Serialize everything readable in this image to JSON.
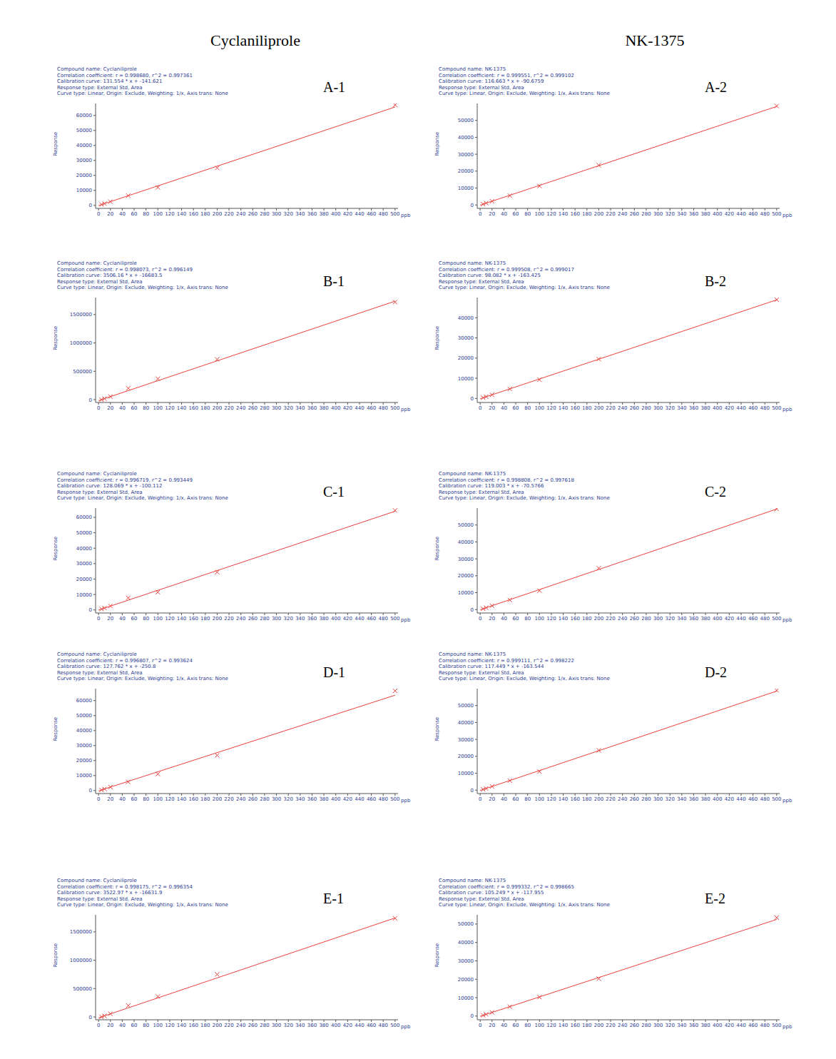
{
  "columns": [
    "Cyclaniliprole",
    "NK-1375"
  ],
  "chart_data": [
    {
      "type": "scatter",
      "title": "A-1",
      "header": [
        "Compound name: Cyclaniliprole",
        "Correlation coefficient: r = 0.998680, r^2 = 0.997361",
        "Calibration curve: 131.554 * x + -141.621",
        "Response type: External Std, Area",
        "Curve type: Linear, Origin: Exclude, Weighting: 1/x, Axis trans: None"
      ],
      "x_label": "ppb",
      "y_label": "Response",
      "xlim": [
        -5,
        505
      ],
      "xticks": [
        0,
        20,
        40,
        60,
        80,
        100,
        120,
        140,
        160,
        180,
        200,
        220,
        240,
        260,
        280,
        300,
        320,
        340,
        360,
        380,
        400,
        420,
        440,
        460,
        480,
        500
      ],
      "ylim": [
        -2000,
        68000
      ],
      "yticks": [
        0,
        10000,
        20000,
        30000,
        40000,
        50000,
        60000
      ],
      "series": [
        {
          "type": "scatter",
          "marker": "x",
          "color": "#e8413c",
          "x": [
            5,
            10,
            20,
            50,
            100,
            200,
            500
          ],
          "values": [
            600,
            1200,
            2500,
            6500,
            12000,
            25000,
            67000
          ]
        },
        {
          "type": "line",
          "color": "#e8413c",
          "x": [
            0,
            500
          ],
          "values": [
            -141.621,
            65636
          ]
        }
      ]
    },
    {
      "type": "scatter",
      "title": "A-2",
      "header": [
        "Compound name: NK-1375",
        "Correlation coefficient: r = 0.999551, r^2 = 0.999102",
        "Calibration curve: 116.663 * x + -90.6759",
        "Response type: External Std, Area",
        "Curve type: Linear, Origin: Exclude, Weighting: 1/x, Axis trans: None"
      ],
      "x_label": "ppb",
      "y_label": "Response",
      "xlim": [
        -5,
        505
      ],
      "xticks": [
        0,
        20,
        40,
        60,
        80,
        100,
        120,
        140,
        160,
        180,
        200,
        220,
        240,
        260,
        280,
        300,
        320,
        340,
        360,
        380,
        400,
        420,
        440,
        460,
        480,
        500
      ],
      "ylim": [
        -2000,
        60000
      ],
      "yticks": [
        0,
        10000,
        20000,
        30000,
        40000,
        50000
      ],
      "series": [
        {
          "type": "scatter",
          "marker": "x",
          "color": "#e8413c",
          "x": [
            5,
            10,
            20,
            50,
            100,
            200,
            500
          ],
          "values": [
            500,
            1100,
            2200,
            5500,
            11200,
            23500,
            58500
          ]
        },
        {
          "type": "line",
          "color": "#e8413c",
          "x": [
            0,
            500
          ],
          "values": [
            -90.6759,
            58241
          ]
        }
      ]
    },
    {
      "type": "scatter",
      "title": "B-1",
      "header": [
        "Compound name: Cyclaniliprole",
        "Correlation coefficient: r = 0.998073, r^2 = 0.996149",
        "Calibration curve: 3506.16 * x + -16683.5",
        "Response type: External Std, Area",
        "Curve type: Linear, Origin: Exclude, Weighting: 1/x, Axis trans: None"
      ],
      "x_label": "ppb",
      "y_label": "Response",
      "xlim": [
        -5,
        505
      ],
      "xticks": [
        0,
        20,
        40,
        60,
        80,
        100,
        120,
        140,
        160,
        180,
        200,
        220,
        240,
        260,
        280,
        300,
        320,
        340,
        360,
        380,
        400,
        420,
        440,
        460,
        480,
        500
      ],
      "ylim": [
        -50000,
        1800000
      ],
      "yticks": [
        0,
        500000,
        1000000,
        1500000
      ],
      "series": [
        {
          "type": "scatter",
          "marker": "x",
          "color": "#e8413c",
          "x": [
            5,
            10,
            20,
            50,
            100,
            200,
            500
          ],
          "values": [
            1000,
            18000,
            55000,
            200000,
            370000,
            710000,
            1720000
          ]
        },
        {
          "type": "line",
          "color": "#e8413c",
          "x": [
            0,
            500
          ],
          "values": [
            -16683.5,
            1736397
          ]
        }
      ]
    },
    {
      "type": "scatter",
      "title": "B-2",
      "header": [
        "Compound name: NK-1375",
        "Correlation coefficient: r = 0.999508, r^2 = 0.999017",
        "Calibration curve: 98.082 * x + -163.425",
        "Response type: External Std, Area",
        "Curve type: Linear, Origin: Exclude, Weighting: 1/x, Axis trans: None"
      ],
      "x_label": "ppb",
      "y_label": "Response",
      "xlim": [
        -5,
        505
      ],
      "xticks": [
        0,
        20,
        40,
        60,
        80,
        100,
        120,
        140,
        160,
        180,
        200,
        220,
        240,
        260,
        280,
        300,
        320,
        340,
        360,
        380,
        400,
        420,
        440,
        460,
        480,
        500
      ],
      "ylim": [
        -2000,
        50000
      ],
      "yticks": [
        0,
        10000,
        20000,
        30000,
        40000
      ],
      "series": [
        {
          "type": "scatter",
          "marker": "x",
          "color": "#e8413c",
          "x": [
            5,
            10,
            20,
            50,
            100,
            200,
            500
          ],
          "values": [
            350,
            850,
            1800,
            4700,
            9300,
            19500,
            49000
          ]
        },
        {
          "type": "line",
          "color": "#e8413c",
          "x": [
            0,
            500
          ],
          "values": [
            -163.425,
            48878
          ]
        }
      ]
    },
    {
      "type": "scatter",
      "title": "C-1",
      "header": [
        "Compound name: Cyclaniliprole",
        "Correlation coefficient: r = 0.996719, r^2 = 0.993449",
        "Calibration curve: 128.069 * x + -100.112",
        "Response type: External Std, Area",
        "Curve type: Linear, Origin: Exclude, Weighting: 1/x, Axis trans: None"
      ],
      "x_label": "ppb",
      "y_label": "Response",
      "xlim": [
        -5,
        505
      ],
      "xticks": [
        0,
        20,
        40,
        60,
        80,
        100,
        120,
        140,
        160,
        180,
        200,
        220,
        240,
        260,
        280,
        300,
        320,
        340,
        360,
        380,
        400,
        420,
        440,
        460,
        480,
        500
      ],
      "ylim": [
        -2000,
        66000
      ],
      "yticks": [
        0,
        10000,
        20000,
        30000,
        40000,
        50000,
        60000
      ],
      "series": [
        {
          "type": "scatter",
          "marker": "x",
          "color": "#e8413c",
          "x": [
            5,
            10,
            20,
            50,
            100,
            200,
            500
          ],
          "values": [
            550,
            1200,
            2500,
            7800,
            11500,
            24500,
            64500
          ]
        },
        {
          "type": "line",
          "color": "#e8413c",
          "x": [
            0,
            500
          ],
          "values": [
            -100.112,
            63934
          ]
        }
      ]
    },
    {
      "type": "scatter",
      "title": "C-2",
      "header": [
        "Compound name: NK-1375",
        "Correlation coefficient: r = 0.998808, r^2 = 0.997618",
        "Calibration curve: 119.003 * x + -70.5766",
        "Response type: External Std, Area",
        "Curve type: Linear, Origin: Exclude, Weighting: 1/x, Axis trans: None"
      ],
      "x_label": "ppb",
      "y_label": "Response",
      "xlim": [
        -5,
        505
      ],
      "xticks": [
        0,
        20,
        40,
        60,
        80,
        100,
        120,
        140,
        160,
        180,
        200,
        220,
        240,
        260,
        280,
        300,
        320,
        340,
        360,
        380,
        400,
        420,
        440,
        460,
        480,
        500
      ],
      "ylim": [
        -2000,
        60000
      ],
      "yticks": [
        0,
        10000,
        20000,
        30000,
        40000,
        50000
      ],
      "series": [
        {
          "type": "scatter",
          "marker": "x",
          "color": "#e8413c",
          "x": [
            5,
            10,
            20,
            50,
            100,
            200,
            500
          ],
          "values": [
            500,
            1100,
            2300,
            5700,
            11200,
            24500,
            59500
          ]
        },
        {
          "type": "line",
          "color": "#e8413c",
          "x": [
            0,
            500
          ],
          "values": [
            -70.5766,
            59431
          ]
        }
      ]
    },
    {
      "type": "scatter",
      "title": "D-1",
      "header": [
        "Compound name: Cyclaniliprole",
        "Correlation coefficient: r = 0.996807, r^2 = 0.993624",
        "Calibration curve: 127.762 * x + -250.8",
        "Response type: External Std, Area",
        "Curve type: Linear, Origin: Exclude, Weighting: 1/x, Axis trans: None"
      ],
      "x_label": "ppb",
      "y_label": "Response",
      "xlim": [
        -5,
        505
      ],
      "xticks": [
        0,
        20,
        40,
        60,
        80,
        100,
        120,
        140,
        160,
        180,
        200,
        220,
        240,
        260,
        280,
        300,
        320,
        340,
        360,
        380,
        400,
        420,
        440,
        460,
        480,
        500
      ],
      "ylim": [
        -2000,
        68000
      ],
      "yticks": [
        0,
        10000,
        20000,
        30000,
        40000,
        50000,
        60000
      ],
      "series": [
        {
          "type": "scatter",
          "marker": "x",
          "color": "#e8413c",
          "x": [
            5,
            10,
            20,
            50,
            100,
            200,
            500
          ],
          "values": [
            400,
            1000,
            2300,
            5800,
            11000,
            23500,
            66500
          ]
        },
        {
          "type": "line",
          "color": "#e8413c",
          "x": [
            0,
            500
          ],
          "values": [
            -250.8,
            63630
          ]
        }
      ]
    },
    {
      "type": "scatter",
      "title": "D-2",
      "header": [
        "Compound name: NK-1375",
        "Correlation coefficient: r = 0.999111, r^2 = 0.998222",
        "Calibration curve: 117.449 * x + -163.544",
        "Response type: External Std, Area",
        "Curve type: Linear, Origin: Exclude, Weighting: 1/x, Axis trans: None"
      ],
      "x_label": "ppb",
      "y_label": "Response",
      "xlim": [
        -5,
        505
      ],
      "xticks": [
        0,
        20,
        40,
        60,
        80,
        100,
        120,
        140,
        160,
        180,
        200,
        220,
        240,
        260,
        280,
        300,
        320,
        340,
        360,
        380,
        400,
        420,
        440,
        460,
        480,
        500
      ],
      "ylim": [
        -2000,
        60000
      ],
      "yticks": [
        0,
        10000,
        20000,
        30000,
        40000,
        50000
      ],
      "series": [
        {
          "type": "scatter",
          "marker": "x",
          "color": "#e8413c",
          "x": [
            5,
            10,
            20,
            50,
            100,
            200,
            500
          ],
          "values": [
            450,
            1000,
            2200,
            5600,
            11000,
            23500,
            59000
          ]
        },
        {
          "type": "line",
          "color": "#e8413c",
          "x": [
            0,
            500
          ],
          "values": [
            -163.544,
            58561
          ]
        }
      ]
    },
    {
      "type": "scatter",
      "title": "E-1",
      "header": [
        "Compound name: Cyclaniliprole",
        "Correlation coefficient: r = 0.998175, r^2 = 0.996354",
        "Calibration curve: 3522.97 * x + -16631.9",
        "Response type: External Std, Area",
        "Curve type: Linear, Origin: Exclude, Weighting: 1/x, Axis trans: None"
      ],
      "x_label": "ppb",
      "y_label": "Response",
      "xlim": [
        -5,
        505
      ],
      "xticks": [
        0,
        20,
        40,
        60,
        80,
        100,
        120,
        140,
        160,
        180,
        200,
        220,
        240,
        260,
        280,
        300,
        320,
        340,
        360,
        380,
        400,
        420,
        440,
        460,
        480,
        500
      ],
      "ylim": [
        -50000,
        1800000
      ],
      "yticks": [
        0,
        500000,
        1000000,
        1500000
      ],
      "series": [
        {
          "type": "scatter",
          "marker": "x",
          "color": "#e8413c",
          "x": [
            5,
            10,
            20,
            50,
            100,
            200,
            500
          ],
          "values": [
            1000,
            19000,
            55000,
            200000,
            360000,
            750000,
            1740000
          ]
        },
        {
          "type": "line",
          "color": "#e8413c",
          "x": [
            0,
            500
          ],
          "values": [
            -16631.9,
            1744853
          ]
        }
      ]
    },
    {
      "type": "scatter",
      "title": "E-2",
      "header": [
        "Compound name: NK-1375",
        "Correlation coefficient: r = 0.999332, r^2 = 0.998665",
        "Calibration curve: 105.249 * x + -117.955",
        "Response type: External Std, Area",
        "Curve type: Linear, Origin: Exclude, Weighting: 1/x, Axis trans: None"
      ],
      "x_label": "ppb",
      "y_label": "Response",
      "xlim": [
        -5,
        505
      ],
      "xticks": [
        0,
        20,
        40,
        60,
        80,
        100,
        120,
        140,
        160,
        180,
        200,
        220,
        240,
        260,
        280,
        300,
        320,
        340,
        360,
        380,
        400,
        420,
        440,
        460,
        480,
        500
      ],
      "ylim": [
        -2000,
        55000
      ],
      "yticks": [
        0,
        10000,
        20000,
        30000,
        40000,
        50000
      ],
      "series": [
        {
          "type": "scatter",
          "marker": "x",
          "color": "#e8413c",
          "x": [
            5,
            10,
            20,
            50,
            100,
            200,
            500
          ],
          "values": [
            420,
            950,
            2000,
            5100,
            10300,
            20300,
            53500
          ]
        },
        {
          "type": "line",
          "color": "#e8413c",
          "x": [
            0,
            500
          ],
          "values": [
            -117.955,
            52506
          ]
        }
      ]
    }
  ]
}
